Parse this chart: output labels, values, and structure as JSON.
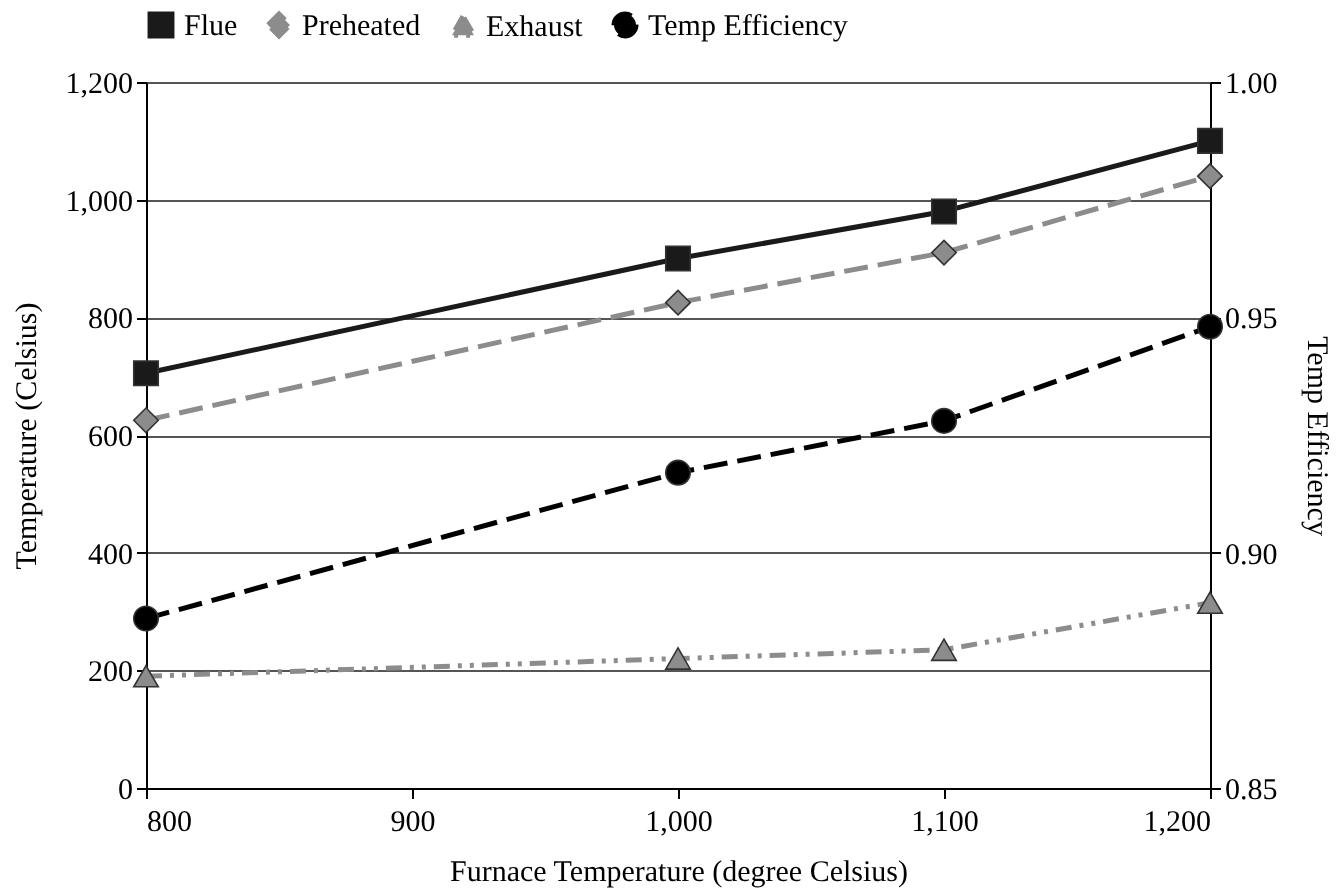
{
  "chart_data": {
    "type": "line",
    "xlabel": "Furnace Temperature (degree Celsius)",
    "ylabel": "Temperature (Celsius)",
    "y2label": "Temp Efficiency",
    "x": [
      800,
      1000,
      1100,
      1200
    ],
    "xlim": [
      800,
      1200
    ],
    "xticks": [
      {
        "value": 800,
        "label": "800"
      },
      {
        "value": 900,
        "label": "900"
      },
      {
        "value": 1000,
        "label": "1,000"
      },
      {
        "value": 1100,
        "label": "1,100"
      },
      {
        "value": 1200,
        "label": "1,200"
      }
    ],
    "ylim": [
      0,
      1200
    ],
    "yticks": [
      {
        "value": 0,
        "label": "0"
      },
      {
        "value": 200,
        "label": "200"
      },
      {
        "value": 400,
        "label": "400"
      },
      {
        "value": 600,
        "label": "600"
      },
      {
        "value": 800,
        "label": "800"
      },
      {
        "value": 1000,
        "label": "1,000"
      },
      {
        "value": 1200,
        "label": "1,200"
      }
    ],
    "y2lim": [
      0.85,
      1.0
    ],
    "y2ticks": [
      {
        "value": 0.85,
        "label": "0.85"
      },
      {
        "value": 0.9,
        "label": "0.90"
      },
      {
        "value": 0.95,
        "label": "0.95"
      },
      {
        "value": 1.0,
        "label": "1.00"
      }
    ],
    "grid": "y",
    "legend": "top",
    "series": [
      {
        "name": "Flue",
        "color": "#1a1a1a",
        "marker": "square",
        "line_style": "solid",
        "values": [
          705,
          900,
          980,
          1100
        ]
      },
      {
        "name": "Preheated",
        "color": "#8c8c8c",
        "marker": "diamond",
        "line_style": "dashed",
        "values": [
          625,
          825,
          910,
          1040
        ]
      },
      {
        "name": "Exhaust",
        "color": "#8c8c8c",
        "marker": "triangle",
        "line_style": "dotted",
        "values": [
          190,
          220,
          235,
          315
        ]
      },
      {
        "name": "Temp Efficiency",
        "color": "#000000",
        "marker": "circle",
        "line_style": "dashed",
        "axis": "y2",
        "values": [
          0.886,
          0.917,
          0.928,
          0.948
        ]
      }
    ]
  }
}
